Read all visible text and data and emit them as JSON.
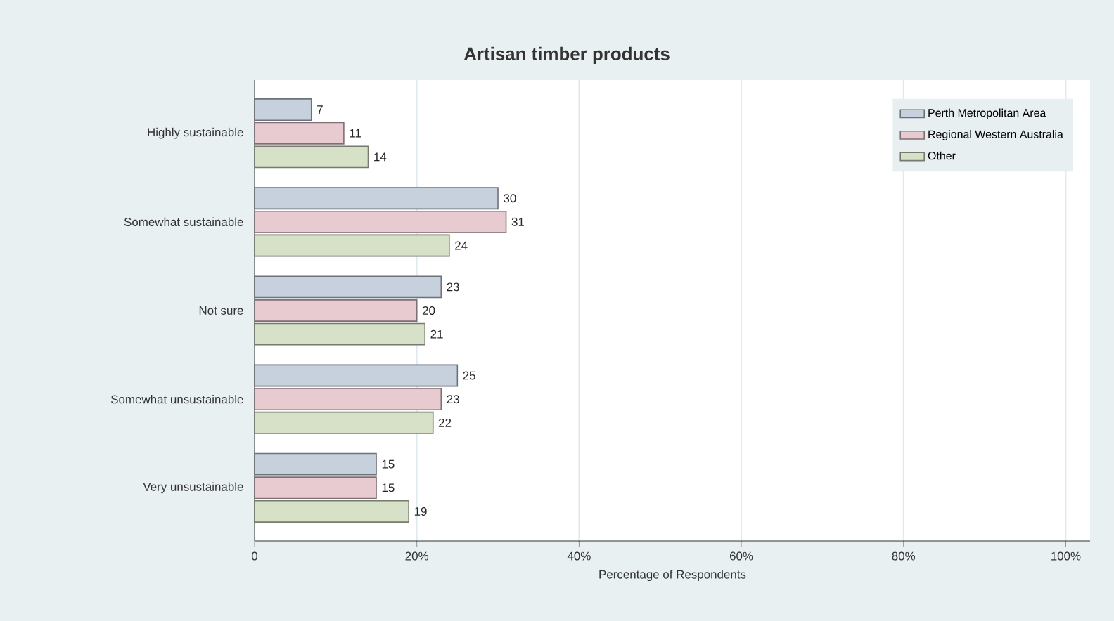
{
  "chart_data": {
    "type": "bar",
    "orientation": "horizontal",
    "title": "Artisan timber products",
    "xlabel": "Percentage of Respondents",
    "categories": [
      "Highly sustainable",
      "Somewhat sustainable",
      "Not sure",
      "Somewhat unsustainable",
      "Very unsustainable"
    ],
    "series": [
      {
        "name": "Perth Metropolitan Area",
        "color": "#c6d1dd",
        "values": [
          7,
          30,
          23,
          25,
          15
        ]
      },
      {
        "name": "Regional Western Australia",
        "color": "#e8cbd0",
        "values": [
          11,
          31,
          20,
          23,
          15
        ]
      },
      {
        "name": "Other",
        "color": "#d6e1c8",
        "values": [
          14,
          24,
          21,
          22,
          19
        ]
      }
    ],
    "xlim": [
      0,
      103
    ],
    "xticks": [
      0,
      {
        "value": 20,
        "label": "20%"
      },
      {
        "value": 40,
        "label": "40%"
      },
      {
        "value": 60,
        "label": "60%"
      },
      {
        "value": 80,
        "label": "80%"
      },
      {
        "value": 100,
        "label": "100%"
      }
    ],
    "grid": "x",
    "legend": "top right",
    "data_labels": true
  }
}
